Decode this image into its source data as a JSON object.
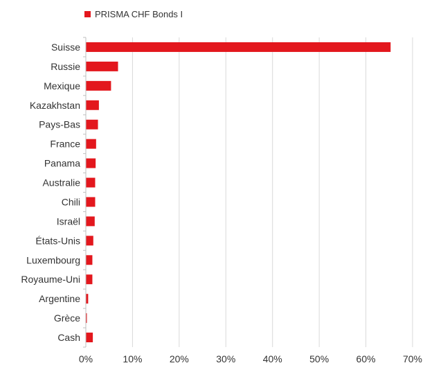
{
  "chart_data": {
    "type": "bar",
    "orientation": "horizontal",
    "categories": [
      "Suisse",
      "Russie",
      "Mexique",
      "Kazakhstan",
      "Pays-Bas",
      "France",
      "Panama",
      "Australie",
      "Chili",
      "Israël",
      "États-Unis",
      "Luxembourg",
      "Royaume-Uni",
      "Argentine",
      "Grèce",
      "Cash"
    ],
    "series": [
      {
        "name": "PRISMA CHF Bonds I",
        "values": [
          65.3,
          6.9,
          5.4,
          2.8,
          2.6,
          2.2,
          2.1,
          2.0,
          2.0,
          1.9,
          1.6,
          1.4,
          1.4,
          0.5,
          0.2,
          1.5
        ]
      }
    ],
    "xlim": [
      0,
      70
    ],
    "x_ticks": [
      "0%",
      "10%",
      "20%",
      "30%",
      "40%",
      "50%",
      "60%",
      "70%"
    ],
    "grid": true,
    "legend_position": "top-left",
    "bar_color": "#e3171d",
    "grid_color": "#d9d9d9",
    "axis_color": "#bfbfbf",
    "text_color": "#333333"
  }
}
